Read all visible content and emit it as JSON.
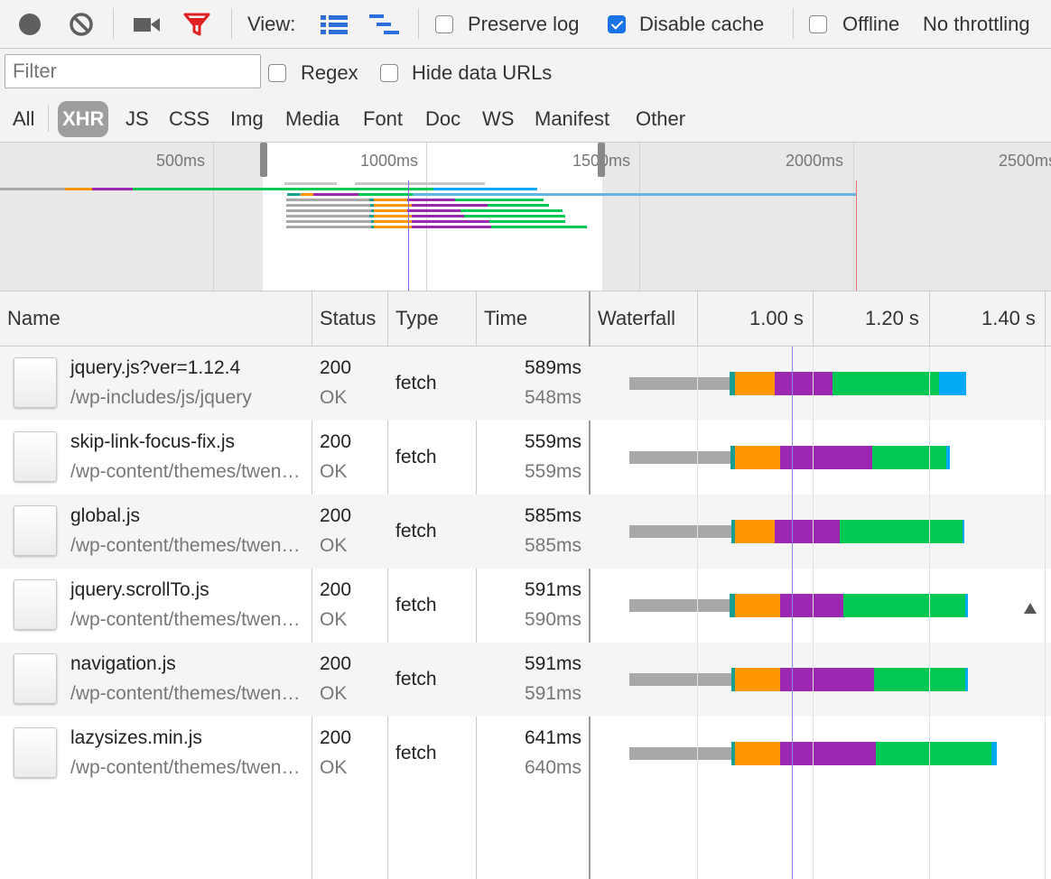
{
  "toolbar": {
    "view_label": "View:",
    "preserve_log": "Preserve log",
    "disable_cache": "Disable cache",
    "offline": "Offline",
    "throttling": "No throttling",
    "disable_cache_checked": true
  },
  "filter": {
    "placeholder": "Filter",
    "regex": "Regex",
    "hide_data_urls": "Hide data URLs",
    "types": [
      "All",
      "XHR",
      "JS",
      "CSS",
      "Img",
      "Media",
      "Font",
      "Doc",
      "WS",
      "Manifest",
      "Other"
    ],
    "active_type": "XHR"
  },
  "overview": {
    "ticks": [
      "500ms",
      "1000ms",
      "1500ms",
      "2000ms",
      "2500ms"
    ]
  },
  "columns": {
    "name": "Name",
    "status": "Status",
    "type": "Type",
    "time": "Time",
    "waterfall": "Waterfall",
    "waterfall_ticks": [
      "1.00 s",
      "1.20 s",
      "1.40 s"
    ]
  },
  "colors": {
    "queue": "#a8a8a8",
    "connect": "#1a9e8f",
    "ssl": "#ff9800",
    "waiting": "#9c27b0",
    "download": "#00c853",
    "content": "#03a9f4",
    "marker": "#7b68ee",
    "load": "#e57373"
  },
  "rows": [
    {
      "name": "jquery.js?ver=1.12.4",
      "path": "/wp-includes/js/jquery",
      "status": "200",
      "status_text": "OK",
      "type": "fetch",
      "time": "589ms",
      "latency": "548ms"
    },
    {
      "name": "skip-link-focus-fix.js",
      "path": "/wp-content/themes/twentyseventeen/assets/js",
      "status": "200",
      "status_text": "OK",
      "type": "fetch",
      "time": "559ms",
      "latency": "559ms"
    },
    {
      "name": "global.js",
      "path": "/wp-content/themes/twentyseventeen/assets/js",
      "status": "200",
      "status_text": "OK",
      "type": "fetch",
      "time": "585ms",
      "latency": "585ms"
    },
    {
      "name": "jquery.scrollTo.js",
      "path": "/wp-content/themes/twentyseventeen/assets/js",
      "status": "200",
      "status_text": "OK",
      "type": "fetch",
      "time": "591ms",
      "latency": "590ms"
    },
    {
      "name": "navigation.js",
      "path": "/wp-content/themes/twentyseventeen/assets/js",
      "status": "200",
      "status_text": "OK",
      "type": "fetch",
      "time": "591ms",
      "latency": "591ms"
    },
    {
      "name": "lazysizes.min.js",
      "path": "/wp-content/themes/twentyseventeen/assets/js",
      "status": "200",
      "status_text": "OK",
      "type": "fetch",
      "time": "641ms",
      "latency": "640ms"
    }
  ]
}
